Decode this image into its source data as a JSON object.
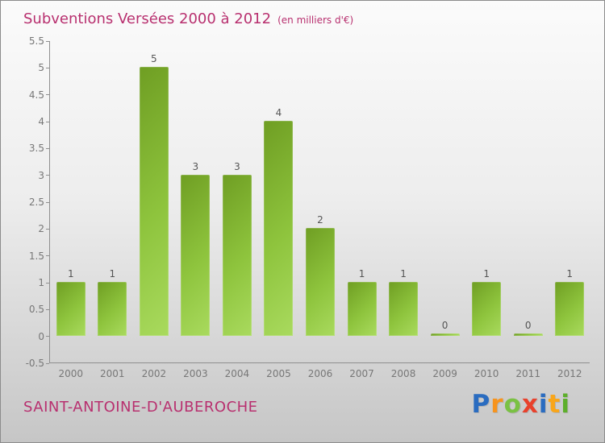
{
  "header": {
    "title": "Subventions Versées 2000 à 2012",
    "subtitle": "(en milliers d'€)"
  },
  "footer": {
    "commune": "SAINT-ANTOINE-D'AUBEROCHE",
    "logo_text": "Proxiti",
    "logo_letters": [
      {
        "char": "P",
        "color": "#2a6cc0"
      },
      {
        "char": "r",
        "color": "#f7941e"
      },
      {
        "char": "o",
        "color": "#7ac143"
      },
      {
        "char": "x",
        "color": "#e8412c"
      },
      {
        "char": "i",
        "color": "#2a6cc0"
      },
      {
        "char": "t",
        "color": "#f9a61a"
      },
      {
        "char": "i",
        "color": "#5daf2b"
      }
    ]
  },
  "chart_data": {
    "type": "bar",
    "title": "Subventions Versées 2000 à 2012",
    "subtitle": "(en milliers d'€)",
    "categories": [
      "2000",
      "2001",
      "2002",
      "2003",
      "2004",
      "2005",
      "2006",
      "2007",
      "2008",
      "2009",
      "2010",
      "2011",
      "2012"
    ],
    "values": [
      1,
      1,
      5,
      3,
      3,
      4,
      2,
      1,
      1,
      0,
      1,
      0,
      1
    ],
    "xlabel": "",
    "ylabel": "",
    "ylim": [
      -0.5,
      5.5
    ],
    "ytick_step": 0.5,
    "grid": false,
    "legend": "none",
    "colors": {
      "bar_top": "#6f9e23",
      "bar_bottom": "#a9da5e",
      "title": "#b8306f",
      "axis": "#8f8f8f",
      "tick_text": "#777777",
      "value_label": "#555555",
      "background_top": "#fbfbfb",
      "background_bottom": "#c6c6c6"
    }
  }
}
